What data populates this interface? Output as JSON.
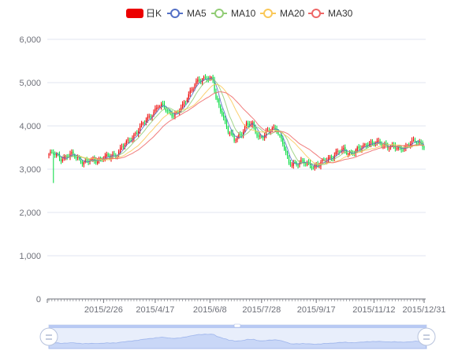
{
  "chart_data": {
    "type": "candlestick",
    "legend": [
      {
        "name": "日K",
        "color": "#ec0000",
        "symbol": "roundRect"
      },
      {
        "name": "MA5",
        "color": "#5470c6",
        "symbol": "circle"
      },
      {
        "name": "MA10",
        "color": "#91cc75",
        "symbol": "circle"
      },
      {
        "name": "MA20",
        "color": "#fac858",
        "symbol": "circle"
      },
      {
        "name": "MA30",
        "color": "#ee6666",
        "symbol": "circle"
      }
    ],
    "colors": {
      "up": "#ec0000",
      "down": "#00da3c",
      "axis": "#6e7079",
      "grid": "#e0e6f1",
      "slider": "#4f7ff0"
    },
    "ylim": [
      0,
      6000
    ],
    "yticks": [
      "0",
      "1,000",
      "2,000",
      "3,000",
      "4,000",
      "5,000",
      "6,000"
    ],
    "xticks": [
      "2015/2/26",
      "2015/4/17",
      "2015/6/8",
      "2015/7/28",
      "2015/9/17",
      "2015/11/12",
      "2015/12/31"
    ],
    "xtick_index": [
      36,
      70,
      106,
      140,
      176,
      214,
      247
    ],
    "close_anchors": [
      [
        0,
        3350
      ],
      [
        4,
        3330
      ],
      [
        8,
        3260
      ],
      [
        12,
        3300
      ],
      [
        16,
        3320
      ],
      [
        20,
        3240
      ],
      [
        24,
        3150
      ],
      [
        28,
        3190
      ],
      [
        32,
        3230
      ],
      [
        36,
        3260
      ],
      [
        40,
        3280
      ],
      [
        44,
        3350
      ],
      [
        48,
        3500
      ],
      [
        52,
        3620
      ],
      [
        56,
        3800
      ],
      [
        60,
        3960
      ],
      [
        64,
        4120
      ],
      [
        68,
        4300
      ],
      [
        72,
        4460
      ],
      [
        76,
        4420
      ],
      [
        80,
        4300
      ],
      [
        84,
        4260
      ],
      [
        88,
        4450
      ],
      [
        92,
        4750
      ],
      [
        96,
        4950
      ],
      [
        100,
        5050
      ],
      [
        104,
        5150
      ],
      [
        108,
        5050
      ],
      [
        110,
        4600
      ],
      [
        114,
        4300
      ],
      [
        118,
        3900
      ],
      [
        122,
        3650
      ],
      [
        126,
        3800
      ],
      [
        130,
        4050
      ],
      [
        134,
        4000
      ],
      [
        138,
        3750
      ],
      [
        142,
        3800
      ],
      [
        146,
        3900
      ],
      [
        150,
        3950
      ],
      [
        154,
        3600
      ],
      [
        158,
        3100
      ],
      [
        162,
        3150
      ],
      [
        166,
        3170
      ],
      [
        170,
        3100
      ],
      [
        174,
        3080
      ],
      [
        178,
        3120
      ],
      [
        182,
        3180
      ],
      [
        186,
        3300
      ],
      [
        190,
        3400
      ],
      [
        194,
        3420
      ],
      [
        198,
        3380
      ],
      [
        202,
        3420
      ],
      [
        206,
        3480
      ],
      [
        210,
        3620
      ],
      [
        214,
        3600
      ],
      [
        218,
        3580
      ],
      [
        222,
        3560
      ],
      [
        226,
        3520
      ],
      [
        230,
        3450
      ],
      [
        234,
        3520
      ],
      [
        238,
        3600
      ],
      [
        242,
        3630
      ],
      [
        247,
        3570
      ]
    ],
    "days": 248
  }
}
